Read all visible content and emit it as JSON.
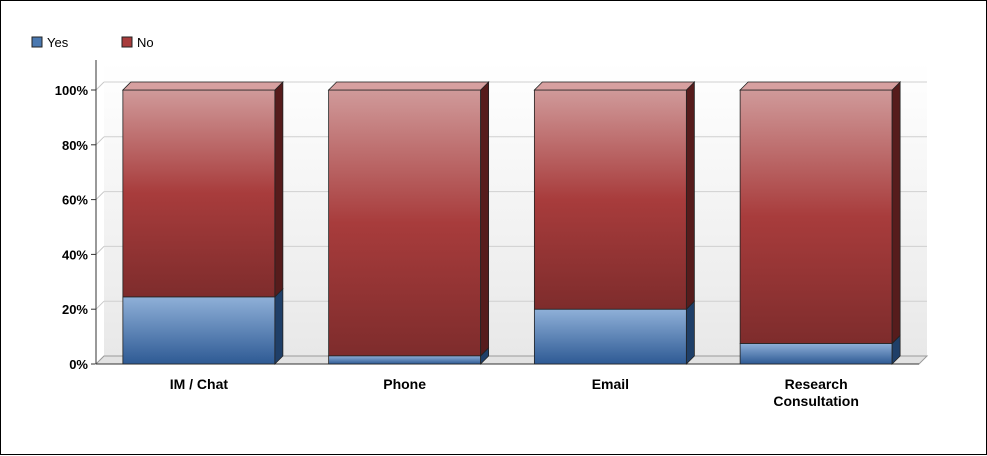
{
  "chart_data": {
    "type": "bar",
    "stacked": true,
    "percent": true,
    "style": "3d",
    "categories": [
      "IM / Chat",
      "Phone",
      "Email",
      "Research\nConsultation"
    ],
    "series": [
      {
        "name": "Yes",
        "color": "#4a78b0",
        "values": [
          24.5,
          3,
          20,
          7.5
        ]
      },
      {
        "name": "No",
        "color": "#a83c3c",
        "values": [
          75.5,
          97,
          80,
          92.5
        ]
      }
    ],
    "y_ticks": [
      "0%",
      "20%",
      "40%",
      "60%",
      "80%",
      "100%"
    ],
    "ylim": [
      0,
      100
    ],
    "grid": true,
    "legend": "top-left"
  }
}
